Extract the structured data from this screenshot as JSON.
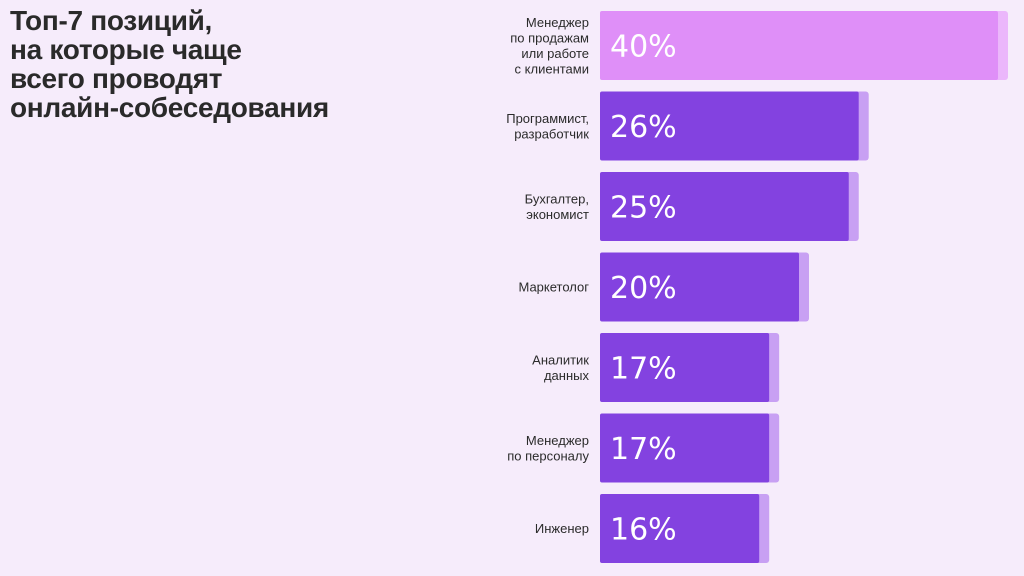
{
  "chart_data": {
    "type": "bar",
    "orientation": "horizontal",
    "title": "Топ-7 позиций,\nна которые чаще\nвсего проводят\nонлайн-собеседования",
    "categories": [
      "Менеджер\nпо продажам\nили работе\nс клиентами",
      "Программист,\nразработчик",
      "Бухгалтер,\nэкономист",
      "Маркетолог",
      "Аналитик\nданных",
      "Менеджер\nпо персоналу",
      "Инженер"
    ],
    "values": [
      40,
      26,
      25,
      20,
      17,
      17,
      16
    ],
    "value_labels": [
      "40%",
      "26%",
      "25%",
      "20%",
      "17%",
      "17%",
      "16%"
    ],
    "unit": "%",
    "xlim": [
      0,
      40
    ],
    "grid": false,
    "legend": "none"
  },
  "colors": {
    "background": "#f6ecfb",
    "highlight_bar": "#df8ff8",
    "highlight_shadow": "#ebb7fb",
    "bar": "#8342e0",
    "bar_shadow": "#c8a0f3",
    "title_text": "#2a2a2a",
    "label_text": "#2b2b2b",
    "value_text": "#ffffff"
  }
}
